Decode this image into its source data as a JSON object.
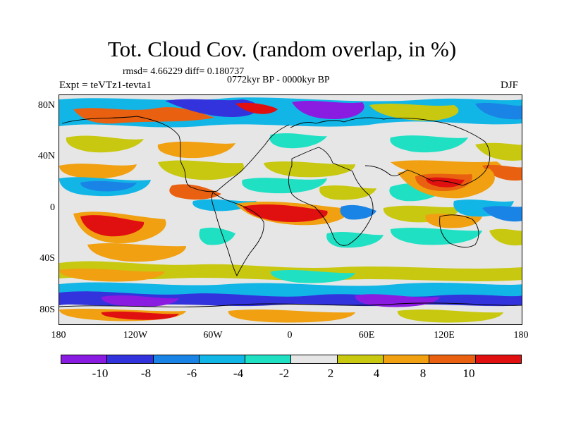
{
  "title": "Tot. Cloud Cov. (random overlap, in %)",
  "stats": "rmsd= 4.66229 diff= 0.180737",
  "period": "0772kyr BP - 0000kyr BP",
  "experiment": "Expt = teVTz1-tevta1",
  "season": "DJF",
  "lat_ticks": [
    "80N",
    "40N",
    "0",
    "40S",
    "80S"
  ],
  "lon_ticks": [
    "180",
    "120W",
    "60W",
    "0",
    "60E",
    "120E",
    "180"
  ],
  "colorbar": {
    "labels": [
      "-10",
      "-8",
      "-6",
      "-4",
      "-2",
      "2",
      "4",
      "8",
      "10"
    ],
    "colors": [
      "#8a1be0",
      "#3333dd",
      "#1a84e6",
      "#12b6e6",
      "#20e0c4",
      "#e6e6e6",
      "#c8c810",
      "#f0a010",
      "#e86010",
      "#e01010"
    ]
  }
}
